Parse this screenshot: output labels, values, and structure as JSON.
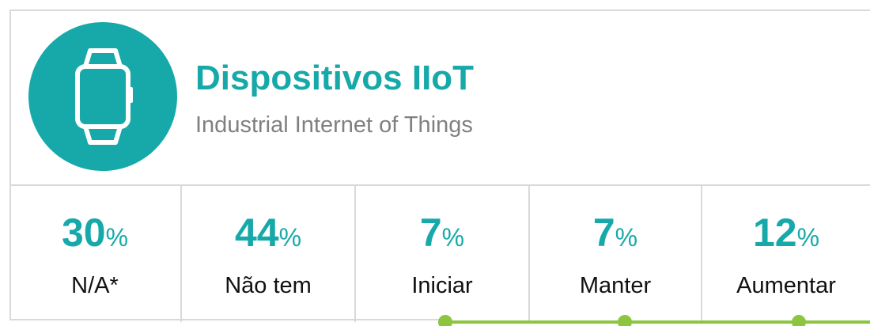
{
  "header": {
    "title": "Dispositivos IIoT",
    "subtitle": "Industrial Internet of Things"
  },
  "stats": [
    {
      "value": 30,
      "unit": "%",
      "label": "N/A*"
    },
    {
      "value": 44,
      "unit": "%",
      "label": "Não tem"
    },
    {
      "value": 7,
      "unit": "%",
      "label": "Iniciar"
    },
    {
      "value": 7,
      "unit": "%",
      "label": "Manter"
    },
    {
      "value": 12,
      "unit": "%",
      "label": "Aumentar"
    }
  ]
}
